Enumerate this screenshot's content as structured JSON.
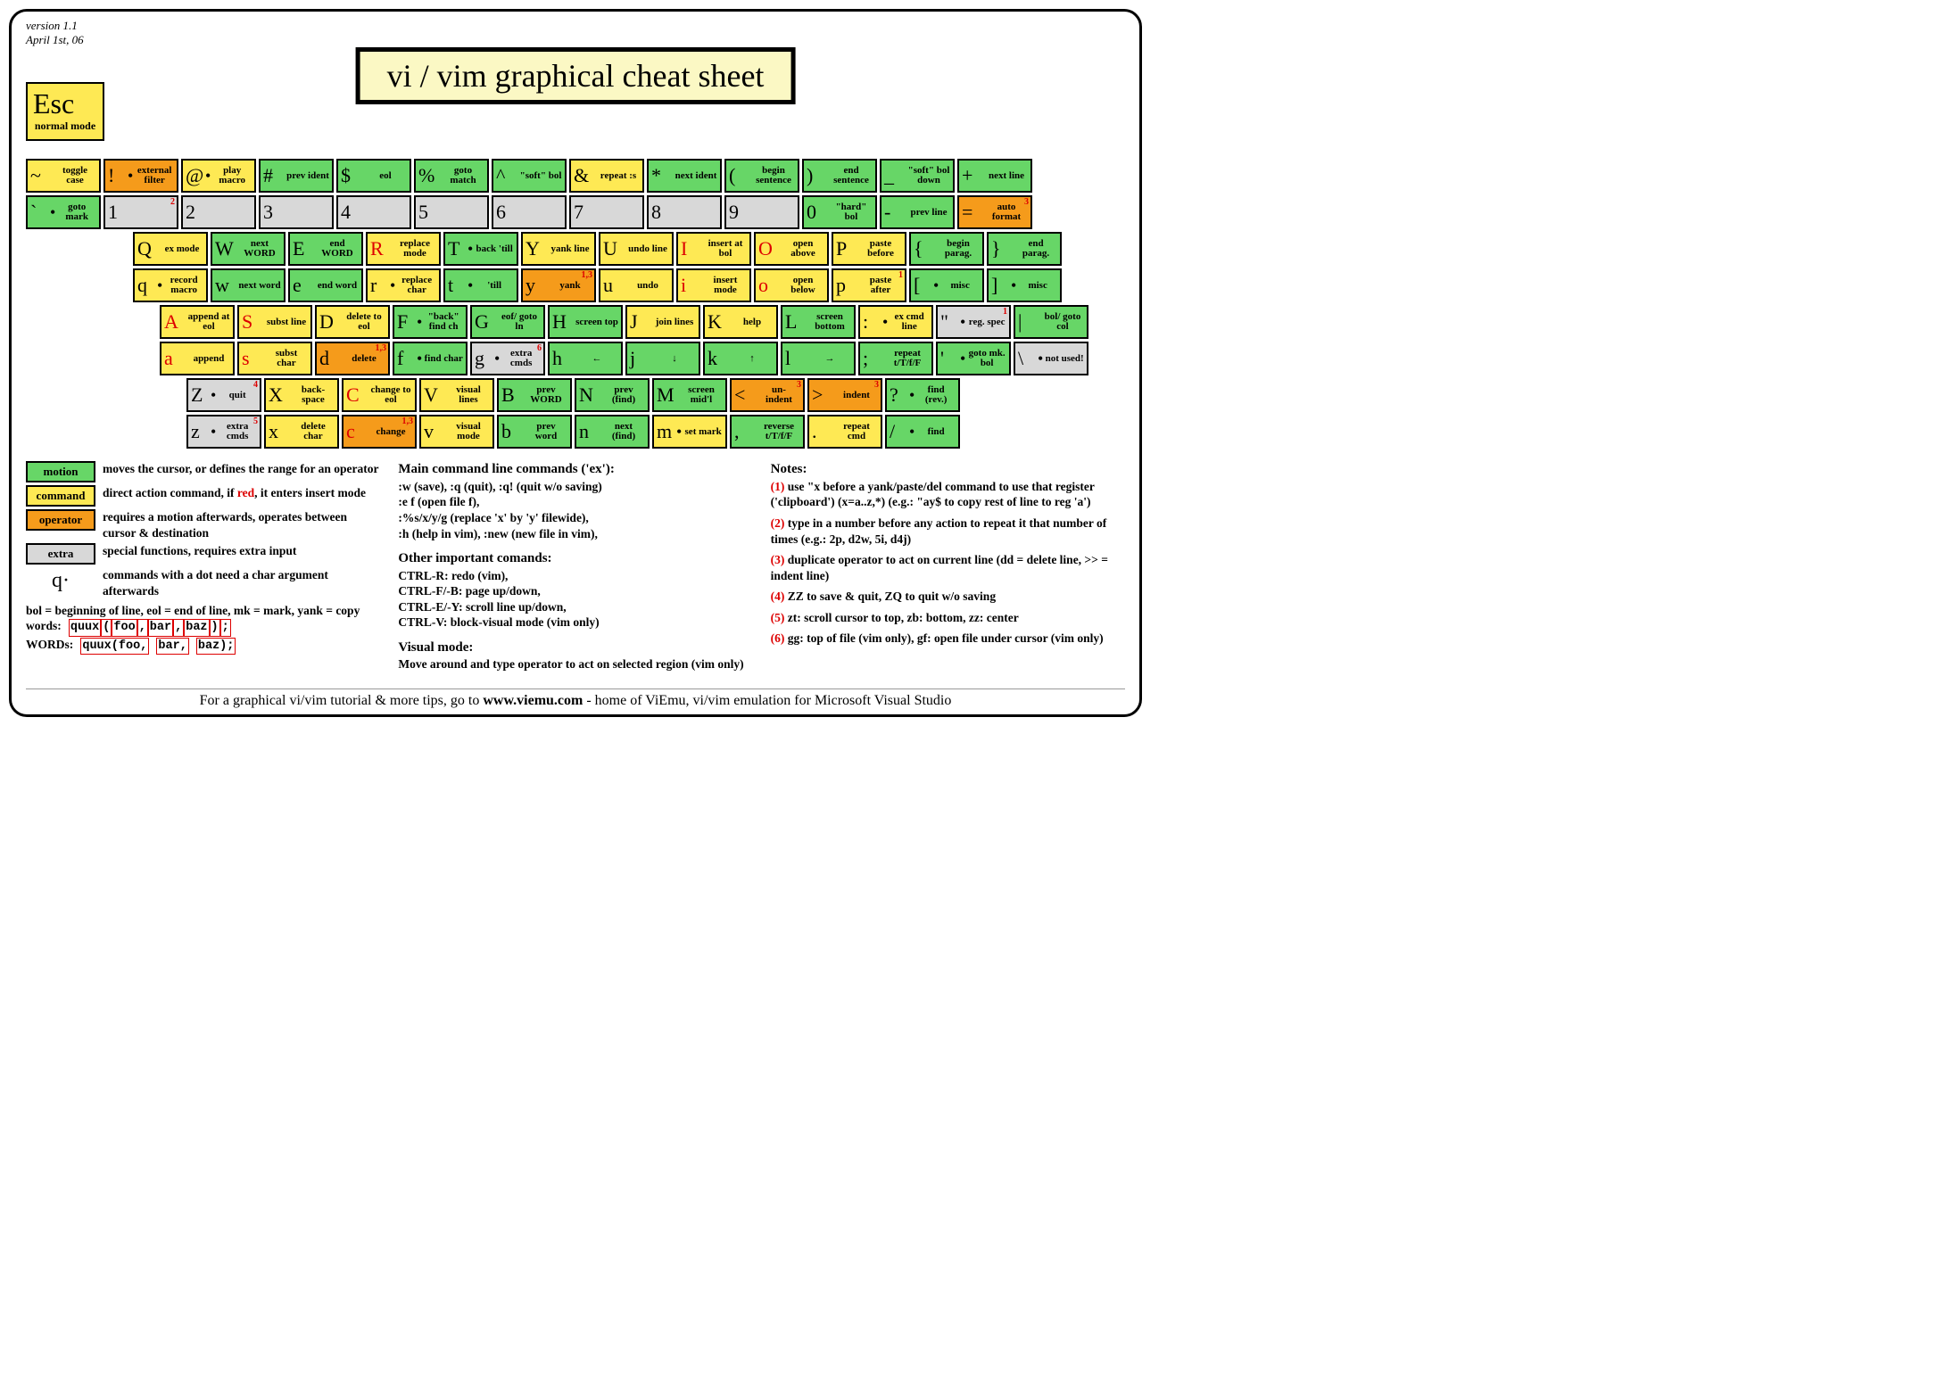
{
  "meta": {
    "version": "version 1.1",
    "date": "April 1st, 06"
  },
  "title": "vi / vim graphical cheat sheet",
  "esc": {
    "big": "Esc",
    "small": "normal mode"
  },
  "colors": {
    "motion": "#67d667",
    "command": "#fee954",
    "operator": "#f59b1b",
    "extra": "#d8d8d8",
    "title_bg": "#fbf8c4",
    "red": "#d00"
  },
  "rows": [
    [
      {
        "u": {
          "ch": "~",
          "lbl": "toggle case",
          "cls": "command"
        },
        "l": {
          "ch": "`",
          "lbl": "goto mark",
          "cls": "motion",
          "dot": true
        }
      },
      {
        "u": {
          "ch": "!",
          "lbl": "external filter",
          "cls": "operator",
          "dot": true
        },
        "l": {
          "ch": "1",
          "lbl": "",
          "cls": "extra",
          "note": "2"
        }
      },
      {
        "u": {
          "ch": "@",
          "lbl": "play macro",
          "cls": "command",
          "dot": true
        },
        "l": {
          "ch": "2",
          "lbl": "",
          "cls": "extra"
        }
      },
      {
        "u": {
          "ch": "#",
          "lbl": "prev ident",
          "cls": "motion"
        },
        "l": {
          "ch": "3",
          "lbl": "",
          "cls": "extra"
        }
      },
      {
        "u": {
          "ch": "$",
          "lbl": "eol",
          "cls": "motion"
        },
        "l": {
          "ch": "4",
          "lbl": "",
          "cls": "extra"
        }
      },
      {
        "u": {
          "ch": "%",
          "lbl": "goto match",
          "cls": "motion"
        },
        "l": {
          "ch": "5",
          "lbl": "",
          "cls": "extra"
        }
      },
      {
        "u": {
          "ch": "^",
          "lbl": "\"soft\" bol",
          "cls": "motion"
        },
        "l": {
          "ch": "6",
          "lbl": "",
          "cls": "extra"
        }
      },
      {
        "u": {
          "ch": "&",
          "lbl": "repeat :s",
          "cls": "command"
        },
        "l": {
          "ch": "7",
          "lbl": "",
          "cls": "extra"
        }
      },
      {
        "u": {
          "ch": "*",
          "lbl": "next ident",
          "cls": "motion"
        },
        "l": {
          "ch": "8",
          "lbl": "",
          "cls": "extra"
        }
      },
      {
        "u": {
          "ch": "(",
          "lbl": "begin sentence",
          "cls": "motion"
        },
        "l": {
          "ch": "9",
          "lbl": "",
          "cls": "extra"
        }
      },
      {
        "u": {
          "ch": ")",
          "lbl": "end sentence",
          "cls": "motion"
        },
        "l": {
          "ch": "0",
          "lbl": "\"hard\" bol",
          "cls": "motion"
        }
      },
      {
        "u": {
          "ch": "_",
          "lbl": "\"soft\" bol down",
          "cls": "motion"
        },
        "l": {
          "ch": "-",
          "lbl": "prev line",
          "cls": "motion"
        }
      },
      {
        "u": {
          "ch": "+",
          "lbl": "next line",
          "cls": "motion"
        },
        "l": {
          "ch": "=",
          "lbl": "auto format",
          "cls": "operator",
          "note": "3"
        }
      }
    ],
    [
      {
        "u": {
          "ch": "Q",
          "lbl": "ex mode",
          "cls": "command"
        },
        "l": {
          "ch": "q",
          "lbl": "record macro",
          "cls": "command",
          "dot": true
        }
      },
      {
        "u": {
          "ch": "W",
          "lbl": "next WORD",
          "cls": "motion"
        },
        "l": {
          "ch": "w",
          "lbl": "next word",
          "cls": "motion"
        }
      },
      {
        "u": {
          "ch": "E",
          "lbl": "end WORD",
          "cls": "motion"
        },
        "l": {
          "ch": "e",
          "lbl": "end word",
          "cls": "motion"
        }
      },
      {
        "u": {
          "ch": "R",
          "lbl": "replace mode",
          "cls": "command",
          "red": true
        },
        "l": {
          "ch": "r",
          "lbl": "replace char",
          "cls": "command",
          "dot": true
        }
      },
      {
        "u": {
          "ch": "T",
          "lbl": "back 'till",
          "cls": "motion",
          "dot": true
        },
        "l": {
          "ch": "t",
          "lbl": "'till",
          "cls": "motion",
          "dot": true
        }
      },
      {
        "u": {
          "ch": "Y",
          "lbl": "yank line",
          "cls": "command"
        },
        "l": {
          "ch": "y",
          "lbl": "yank",
          "cls": "operator",
          "note": "1,3"
        }
      },
      {
        "u": {
          "ch": "U",
          "lbl": "undo line",
          "cls": "command"
        },
        "l": {
          "ch": "u",
          "lbl": "undo",
          "cls": "command"
        }
      },
      {
        "u": {
          "ch": "I",
          "lbl": "insert at bol",
          "cls": "command",
          "red": true
        },
        "l": {
          "ch": "i",
          "lbl": "insert mode",
          "cls": "command",
          "red": true
        }
      },
      {
        "u": {
          "ch": "O",
          "lbl": "open above",
          "cls": "command",
          "red": true
        },
        "l": {
          "ch": "o",
          "lbl": "open below",
          "cls": "command",
          "red": true
        }
      },
      {
        "u": {
          "ch": "P",
          "lbl": "paste before",
          "cls": "command"
        },
        "l": {
          "ch": "p",
          "lbl": "paste after",
          "cls": "command",
          "note": "1"
        }
      },
      {
        "u": {
          "ch": "{",
          "lbl": "begin parag.",
          "cls": "motion"
        },
        "l": {
          "ch": "[",
          "lbl": "misc",
          "cls": "motion",
          "dot": true
        }
      },
      {
        "u": {
          "ch": "}",
          "lbl": "end parag.",
          "cls": "motion"
        },
        "l": {
          "ch": "]",
          "lbl": "misc",
          "cls": "motion",
          "dot": true
        }
      }
    ],
    [
      {
        "u": {
          "ch": "A",
          "lbl": "append at eol",
          "cls": "command",
          "red": true
        },
        "l": {
          "ch": "a",
          "lbl": "append",
          "cls": "command",
          "red": true
        }
      },
      {
        "u": {
          "ch": "S",
          "lbl": "subst line",
          "cls": "command",
          "red": true
        },
        "l": {
          "ch": "s",
          "lbl": "subst char",
          "cls": "command",
          "red": true
        }
      },
      {
        "u": {
          "ch": "D",
          "lbl": "delete to eol",
          "cls": "command"
        },
        "l": {
          "ch": "d",
          "lbl": "delete",
          "cls": "operator",
          "note": "1,3"
        }
      },
      {
        "u": {
          "ch": "F",
          "lbl": "\"back\" find ch",
          "cls": "motion",
          "dot": true
        },
        "l": {
          "ch": "f",
          "lbl": "find char",
          "cls": "motion",
          "dot": true
        }
      },
      {
        "u": {
          "ch": "G",
          "lbl": "eof/ goto ln",
          "cls": "motion"
        },
        "l": {
          "ch": "g",
          "lbl": "extra cmds",
          "cls": "extra",
          "dot": true,
          "note": "6"
        }
      },
      {
        "u": {
          "ch": "H",
          "lbl": "screen top",
          "cls": "motion"
        },
        "l": {
          "ch": "h",
          "lbl": "←",
          "cls": "motion",
          "arrow": true
        }
      },
      {
        "u": {
          "ch": "J",
          "lbl": "join lines",
          "cls": "command"
        },
        "l": {
          "ch": "j",
          "lbl": "↓",
          "cls": "motion",
          "arrow": true
        }
      },
      {
        "u": {
          "ch": "K",
          "lbl": "help",
          "cls": "command"
        },
        "l": {
          "ch": "k",
          "lbl": "↑",
          "cls": "motion",
          "arrow": true
        }
      },
      {
        "u": {
          "ch": "L",
          "lbl": "screen bottom",
          "cls": "motion"
        },
        "l": {
          "ch": "l",
          "lbl": "→",
          "cls": "motion",
          "arrow": true
        }
      },
      {
        "u": {
          "ch": ":",
          "lbl": "ex cmd line",
          "cls": "command",
          "dot": true
        },
        "l": {
          "ch": ";",
          "lbl": "repeat t/T/f/F",
          "cls": "motion"
        }
      },
      {
        "u": {
          "ch": "\"",
          "lbl": "reg. spec",
          "cls": "extra",
          "dot": true,
          "note": "1"
        },
        "l": {
          "ch": "'",
          "lbl": "goto mk. bol",
          "cls": "motion",
          "dot": true
        }
      },
      {
        "u": {
          "ch": "|",
          "lbl": "bol/ goto col",
          "cls": "motion"
        },
        "l": {
          "ch": "\\",
          "lbl": "not used!",
          "cls": "extra",
          "dot": true
        }
      }
    ],
    [
      {
        "u": {
          "ch": "Z",
          "lbl": "quit",
          "cls": "extra",
          "dot": true,
          "note": "4"
        },
        "l": {
          "ch": "z",
          "lbl": "extra cmds",
          "cls": "extra",
          "dot": true,
          "note": "5"
        }
      },
      {
        "u": {
          "ch": "X",
          "lbl": "back- space",
          "cls": "command"
        },
        "l": {
          "ch": "x",
          "lbl": "delete char",
          "cls": "command"
        }
      },
      {
        "u": {
          "ch": "C",
          "lbl": "change to eol",
          "cls": "command",
          "red": true
        },
        "l": {
          "ch": "c",
          "lbl": "change",
          "cls": "operator",
          "red": true,
          "note": "1,3"
        }
      },
      {
        "u": {
          "ch": "V",
          "lbl": "visual lines",
          "cls": "command"
        },
        "l": {
          "ch": "v",
          "lbl": "visual mode",
          "cls": "command"
        }
      },
      {
        "u": {
          "ch": "B",
          "lbl": "prev WORD",
          "cls": "motion"
        },
        "l": {
          "ch": "b",
          "lbl": "prev word",
          "cls": "motion"
        }
      },
      {
        "u": {
          "ch": "N",
          "lbl": "prev (find)",
          "cls": "motion"
        },
        "l": {
          "ch": "n",
          "lbl": "next (find)",
          "cls": "motion"
        }
      },
      {
        "u": {
          "ch": "M",
          "lbl": "screen mid'l",
          "cls": "motion"
        },
        "l": {
          "ch": "m",
          "lbl": "set mark",
          "cls": "command",
          "dot": true
        }
      },
      {
        "u": {
          "ch": "<",
          "lbl": "un- indent",
          "cls": "operator",
          "note": "3"
        },
        "l": {
          "ch": ",",
          "lbl": "reverse t/T/f/F",
          "cls": "motion"
        }
      },
      {
        "u": {
          "ch": ">",
          "lbl": "indent",
          "cls": "operator",
          "note": "3"
        },
        "l": {
          "ch": ".",
          "lbl": "repeat cmd",
          "cls": "command"
        }
      },
      {
        "u": {
          "ch": "?",
          "lbl": "find (rev.)",
          "cls": "motion",
          "dot": true
        },
        "l": {
          "ch": "/",
          "lbl": "find",
          "cls": "motion",
          "dot": true
        }
      }
    ]
  ],
  "legend": [
    {
      "box": "motion",
      "cls": "motion",
      "text": "moves the cursor, or defines the range for an operator"
    },
    {
      "box": "command",
      "cls": "command",
      "text": "direct action command, if <red>red</red>, it enters insert mode"
    },
    {
      "box": "operator",
      "cls": "operator",
      "text": "requires a motion afterwards, operates between cursor & destination"
    },
    {
      "box": "extra",
      "cls": "extra",
      "text": "special functions, requires extra input"
    },
    {
      "q": "q·",
      "text": "commands with a dot need a char argument afterwards"
    }
  ],
  "abbr": "bol = beginning of line, eol = end of line, mk = mark, yank = copy",
  "words_label": "words:",
  "words_demo": [
    "quux",
    "(",
    "foo",
    ",",
    "bar",
    ",",
    "baz",
    ")",
    ";"
  ],
  "WORDS_label": "WORDs:",
  "WORDS_demo": [
    "quux(foo,",
    "bar,",
    "baz);"
  ],
  "main_cmds": {
    "title": "Main command line commands ('ex'):",
    "lines": [
      ":w (save), :q (quit), :q! (quit w/o saving)",
      ":e f (open file f),",
      ":%s/x/y/g (replace 'x' by 'y' filewide),",
      ":h (help in vim), :new (new file in vim),"
    ]
  },
  "other_cmds": {
    "title": "Other important comands:",
    "lines": [
      "CTRL-R: redo (vim),",
      "CTRL-F/-B: page up/down,",
      "CTRL-E/-Y: scroll line up/down,",
      "CTRL-V: block-visual mode (vim only)"
    ]
  },
  "visual": {
    "title": "Visual mode:",
    "lines": [
      "Move around and type operator to act on selected region (vim only)"
    ]
  },
  "notes": {
    "title": "Notes:",
    "items": [
      {
        "n": "(1)",
        "t": "use \"x before a yank/paste/del command to use that register ('clipboard') (x=a..z,*) (e.g.: \"ay$ to copy rest of line to reg 'a')"
      },
      {
        "n": "(2)",
        "t": "type in a number before any action to repeat it that number of times (e.g.: 2p, d2w, 5i, d4j)"
      },
      {
        "n": "(3)",
        "t": "duplicate operator to act on current line (dd = delete line, >> = indent line)"
      },
      {
        "n": "(4)",
        "t": "ZZ to save & quit, ZQ to quit w/o saving"
      },
      {
        "n": "(5)",
        "t": "zt: scroll cursor to top, zb: bottom, zz: center"
      },
      {
        "n": "(6)",
        "t": "gg: top of file (vim only), gf: open file under cursor (vim only)"
      }
    ]
  },
  "footer": {
    "pre": "For a graphical vi/vim tutorial & more tips, go to  ",
    "url": "www.viemu.com",
    "post": "  - home of ViEmu, vi/vim emulation for Microsoft Visual Studio"
  }
}
